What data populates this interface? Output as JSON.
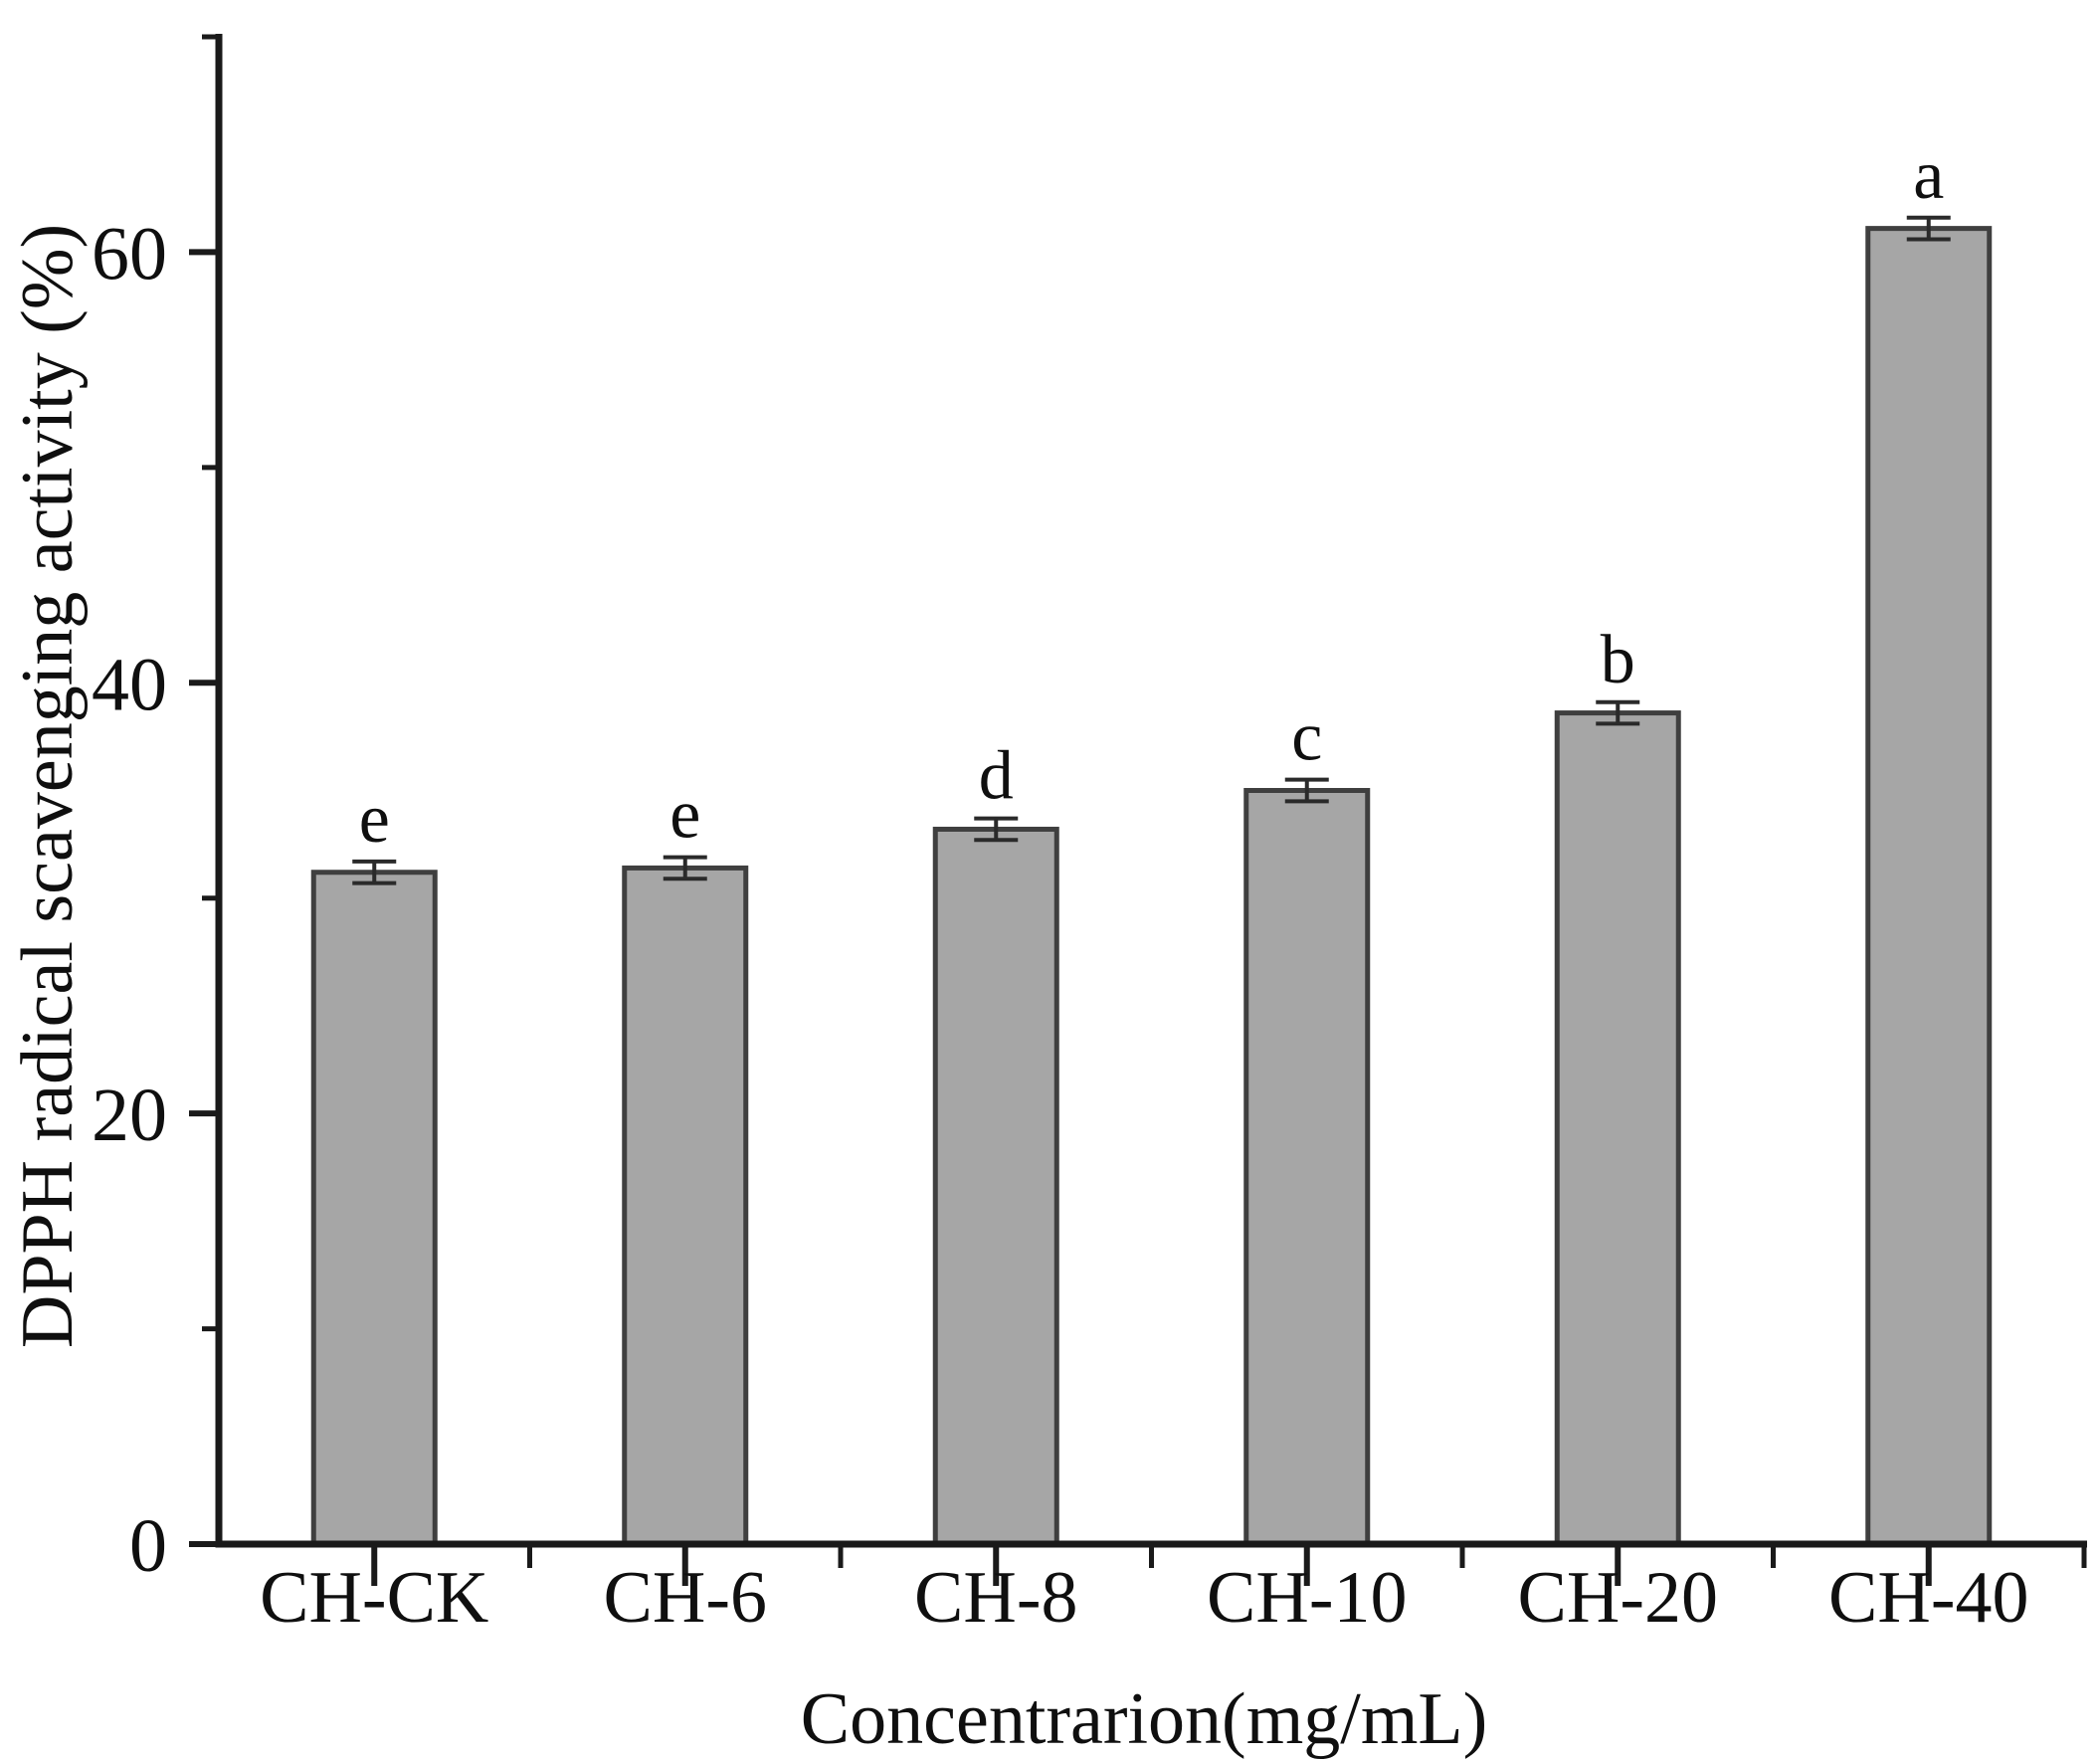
{
  "figure": {
    "background_color": "#ffffff",
    "axis_color": "#1a1a1a",
    "text_color": "#0f0f0f"
  },
  "chart_data": {
    "type": "bar",
    "title": "",
    "xlabel": "Concentrarion(mg/mL)",
    "ylabel": "DPPH radical scavenging activity (%)",
    "categories": [
      "CH-CK",
      "CH-6",
      "CH-8",
      "CH-10",
      "CH-20",
      "CH-40"
    ],
    "values": [
      31.2,
      31.4,
      33.2,
      35.0,
      38.6,
      61.1
    ],
    "errors": [
      0.5,
      0.5,
      0.5,
      0.5,
      0.5,
      0.5
    ],
    "sig_letters": [
      "e",
      "e",
      "d",
      "c",
      "b",
      "a"
    ],
    "ylim": [
      0,
      70
    ],
    "ytick_major": [
      0,
      20,
      40,
      60
    ],
    "ytick_minor": [
      10,
      30,
      50,
      70
    ],
    "grid": false,
    "legend": null,
    "bar_fill": "#a6a6a6",
    "bar_edge": "#3f3f3f",
    "error_color": "#2a2a2a"
  }
}
